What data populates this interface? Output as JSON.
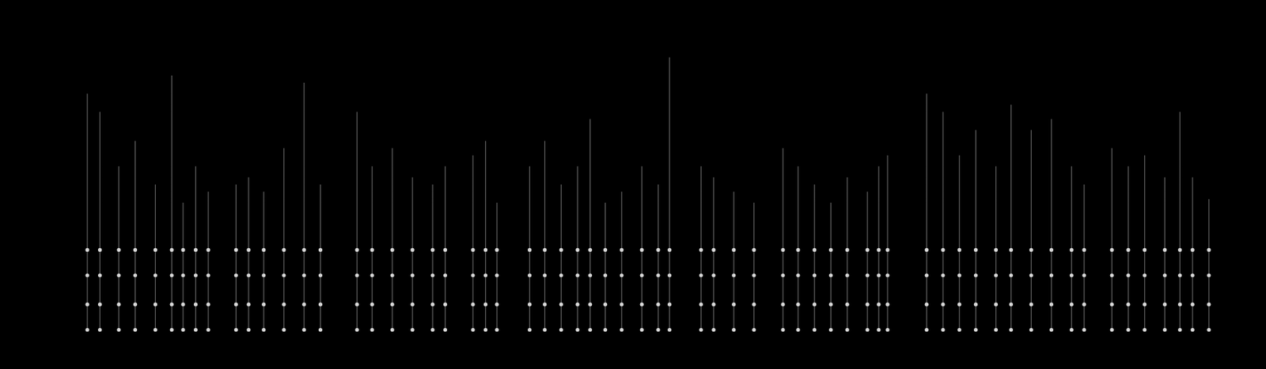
{
  "chart_data": {
    "type": "spectrogram",
    "tick_labels": false,
    "grid": false,
    "xlim": [
      0,
      100
    ],
    "ylim": [
      0,
      100
    ],
    "color": "#d8d8d8",
    "harmonics": [
      10,
      17,
      25,
      32
    ],
    "calls": {
      "time": [
        6.7,
        7.7,
        9.2,
        10.5,
        12.1,
        13.4,
        14.3,
        15.3,
        16.3,
        18.5,
        19.5,
        20.7,
        22.3,
        23.9,
        25.2,
        28.1,
        29.3,
        30.9,
        32.5,
        34.1,
        35.1,
        37.3,
        38.3,
        39.2,
        41.8,
        43.0,
        44.3,
        45.6,
        46.6,
        47.8,
        49.1,
        50.7,
        52.0,
        52.9,
        55.4,
        56.4,
        58.0,
        59.6,
        61.9,
        63.1,
        64.4,
        65.7,
        67.0,
        68.6,
        69.5,
        70.2,
        73.3,
        74.6,
        75.9,
        77.2,
        78.8,
        80.0,
        81.6,
        83.2,
        84.8,
        85.8,
        88.0,
        89.3,
        90.6,
        92.2,
        93.4,
        94.4,
        95.7
      ],
      "top": [
        75,
        70,
        55,
        62,
        50,
        80,
        45,
        55,
        48,
        50,
        52,
        48,
        60,
        78,
        50,
        70,
        55,
        60,
        52,
        50,
        55,
        58,
        62,
        45,
        55,
        62,
        50,
        55,
        68,
        45,
        48,
        55,
        50,
        85,
        55,
        52,
        48,
        45,
        60,
        55,
        50,
        45,
        52,
        48,
        55,
        58,
        75,
        70,
        58,
        65,
        55,
        72,
        65,
        68,
        55,
        50,
        60,
        55,
        58,
        52,
        70,
        52,
        46
      ]
    }
  }
}
